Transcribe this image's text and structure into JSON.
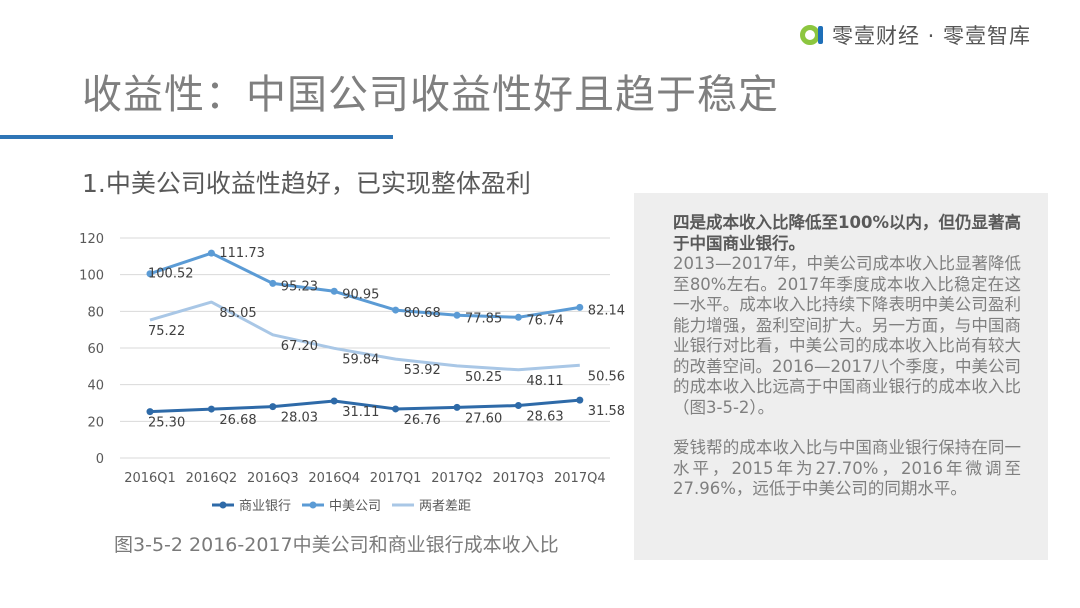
{
  "header": {
    "logo_text": "零壹财经 · 零壹智库",
    "logo_colors": {
      "green": "#8cc63f",
      "blue": "#1e6fb8"
    }
  },
  "title": "收益性：中国公司收益性好且趋于稳定",
  "subtitle": "1.中美公司收益性趋好，已实现整体盈利",
  "caption": "图3-5-2 2016-2017中美公司和商业银行成本收入比",
  "textbox": {
    "heading": "四是成本收入比降低至100%以内，但仍显著高于中国商业银行。",
    "paragraph1": "2013—2017年，中美公司成本收入比显著降低至80%左右。2017年季度成本收入比稳定在这一水平。成本收入比持续下降表明中美公司盈利能力增强，盈利空间扩大。另一方面，与中国商业银行对比看，中美公司的成本收入比尚有较大的改善空间。2016—2017八个季度，中美公司的成本收入比远高于中国商业银行的成本收入比（图3-5-2）。",
    "paragraph2": "爱钱帮的成本收入比与中国商业银行保持在同一水平，2015年为27.70%，2016年微调至27.96%，远低于中美公司的同期水平。"
  },
  "chart_data": {
    "type": "line",
    "categories": [
      "2016Q1",
      "2016Q2",
      "2016Q3",
      "2016Q4",
      "2017Q1",
      "2017Q2",
      "2017Q3",
      "2017Q4"
    ],
    "yticks": [
      "0",
      "20",
      "40",
      "60",
      "80",
      "100",
      "120"
    ],
    "ylim": [
      0,
      120
    ],
    "grid": true,
    "legend_position": "bottom",
    "series": [
      {
        "name": "商业银行",
        "color": "#2e6aa8",
        "markers": true,
        "values": [
          25.3,
          26.68,
          28.03,
          31.11,
          26.76,
          27.6,
          28.63,
          31.58
        ],
        "labels": [
          "25.30",
          "26.68",
          "28.03",
          "31.11",
          "26.76",
          "27.60",
          "28.63",
          "31.58"
        ]
      },
      {
        "name": "中美公司",
        "color": "#5b9bd5",
        "markers": true,
        "values": [
          100.52,
          111.73,
          95.23,
          90.95,
          80.68,
          77.85,
          76.74,
          82.14
        ],
        "labels": [
          "100.52",
          "111.73",
          "95.23",
          "90.95",
          "80.68",
          "77.85",
          "76.74",
          "82.14"
        ]
      },
      {
        "name": "两者差距",
        "color": "#a9c7e6",
        "markers": false,
        "values": [
          75.22,
          85.05,
          67.2,
          59.84,
          53.92,
          50.25,
          48.11,
          50.56
        ],
        "labels": [
          "75.22",
          "85.05",
          "67.20",
          "59.84",
          "53.92",
          "50.25",
          "48.11",
          "50.56"
        ]
      }
    ]
  }
}
